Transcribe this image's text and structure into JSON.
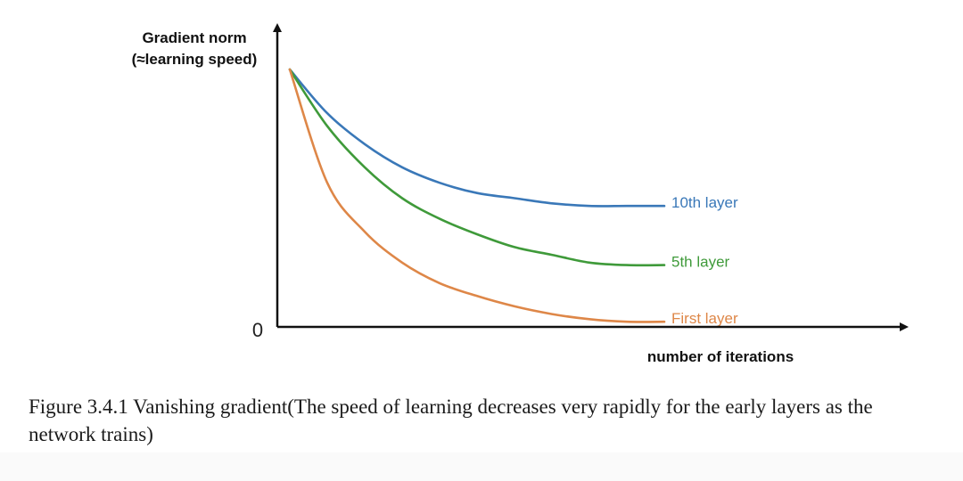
{
  "chart_data": {
    "type": "line",
    "title": "",
    "ylabel_lines": [
      "Gradient norm",
      "(≈learning speed)"
    ],
    "xlabel": "number of iterations",
    "y_tick_labels": [
      "0"
    ],
    "xlim": [
      0,
      1
    ],
    "ylim": [
      0,
      1
    ],
    "x": [
      0,
      0.1,
      0.2,
      0.3,
      0.4,
      0.5,
      0.6,
      0.7,
      0.8,
      0.9,
      1.0
    ],
    "series": [
      {
        "name": "10th layer",
        "color": "#3a78b8",
        "values": [
          1.0,
          0.83,
          0.71,
          0.62,
          0.56,
          0.52,
          0.5,
          0.48,
          0.47,
          0.47,
          0.47
        ]
      },
      {
        "name": "5th layer",
        "color": "#3f9a3a",
        "values": [
          1.0,
          0.78,
          0.62,
          0.5,
          0.42,
          0.36,
          0.31,
          0.28,
          0.25,
          0.24,
          0.24
        ]
      },
      {
        "name": "First layer",
        "color": "#de8748",
        "values": [
          1.0,
          0.56,
          0.37,
          0.25,
          0.17,
          0.12,
          0.08,
          0.05,
          0.03,
          0.02,
          0.02
        ]
      }
    ]
  },
  "caption": "Figure 3.4.1 Vanishing gradient(The speed of learning decreases very rapidly for the early layers as the network trains)"
}
